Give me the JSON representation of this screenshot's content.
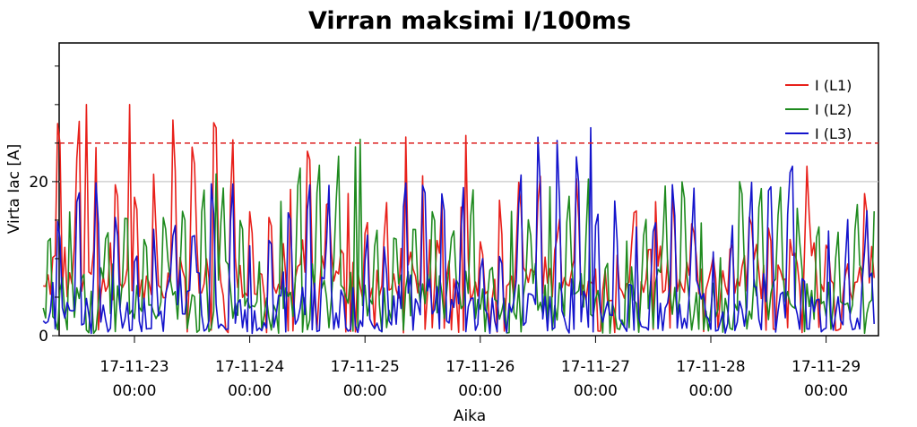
{
  "chart_data": {
    "type": "line",
    "title": "Virran maksimi I/100ms",
    "xlabel": "Aika",
    "ylabel": "Virta Iac [A]",
    "ylim": [
      0,
      38
    ],
    "y_ticks": [
      0,
      20
    ],
    "x_tick_labels": [
      [
        "17-11-23",
        "00:00"
      ],
      [
        "17-11-24",
        "00:00"
      ],
      [
        "17-11-25",
        "00:00"
      ],
      [
        "17-11-26",
        "00:00"
      ],
      [
        "17-11-27",
        "00:00"
      ],
      [
        "17-11-28",
        "00:00"
      ],
      [
        "17-11-29",
        "00:00"
      ]
    ],
    "x_range": [
      "2017-11-22 05:00",
      "2017-11-29 10:00"
    ],
    "grid": "horizontal line at 20",
    "reference_line": {
      "value": 25,
      "style": "dashed",
      "color": "#dd2222"
    },
    "legend_position": "top-right",
    "series": [
      {
        "name": "I (L1)",
        "color": "#e8201a",
        "baseline": 4.5,
        "daily_peaks": [
          30,
          28,
          25,
          26,
          21,
          19,
          18,
          22
        ],
        "notable_spikes": [
          {
            "x": "2017-11-22 14:00",
            "y": 30
          },
          {
            "x": "2017-11-22 23:00",
            "y": 30
          },
          {
            "x": "2017-11-23 08:00",
            "y": 28
          },
          {
            "x": "2017-11-23 17:00",
            "y": 27
          },
          {
            "x": "2017-11-25 21:00",
            "y": 26
          },
          {
            "x": "2017-11-28 20:00",
            "y": 22
          }
        ]
      },
      {
        "name": "I (L2)",
        "color": "#1e8a1e",
        "baseline": 2,
        "daily_peaks": [
          20,
          21,
          25.5,
          20,
          21,
          20,
          20,
          18
        ],
        "notable_spikes": [
          {
            "x": "2017-11-24 23:00",
            "y": 25.5
          },
          {
            "x": "2017-11-23 17:00",
            "y": 21
          }
        ]
      },
      {
        "name": "I (L3)",
        "color": "#1414cc",
        "baseline": 0.5,
        "daily_peaks": [
          20,
          20,
          20,
          20,
          27,
          21,
          22,
          18
        ],
        "notable_spikes": [
          {
            "x": "2017-11-26 23:00",
            "y": 27
          },
          {
            "x": "2017-11-28 17:00",
            "y": 22
          }
        ]
      }
    ]
  }
}
